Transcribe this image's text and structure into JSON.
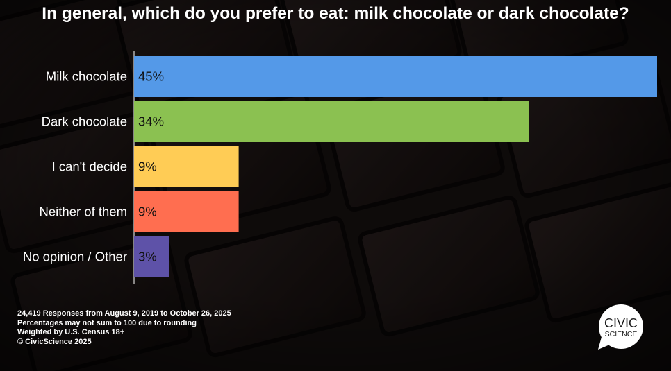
{
  "title": "In general, which do you prefer to eat: milk chocolate or dark chocolate?",
  "chart_data": {
    "type": "bar",
    "orientation": "horizontal",
    "title": "In general, which do you prefer to eat: milk chocolate or dark chocolate?",
    "categories": [
      "Milk chocolate",
      "Dark chocolate",
      "I can't decide",
      "Neither of them",
      "No opinion / Other"
    ],
    "values": [
      45,
      34,
      9,
      9,
      3
    ],
    "data_labels": [
      "45%",
      "34%",
      "9%",
      "9%",
      "3%"
    ],
    "colors": [
      "#5499E8",
      "#8BC151",
      "#FFCC55",
      "#FF6E50",
      "#5E52A8"
    ],
    "xlim": [
      0,
      45
    ],
    "grid": false,
    "legend": "none"
  },
  "footnotes": [
    "24,419 Responses from August 9, 2019 to October 26, 2025",
    "Percentages may not sum to 100 due to rounding",
    "Weighted by U.S. Census 18+",
    "© CivicScience 2025"
  ],
  "logo": {
    "line1": "CIVIC",
    "line2": "SCIENCE"
  }
}
